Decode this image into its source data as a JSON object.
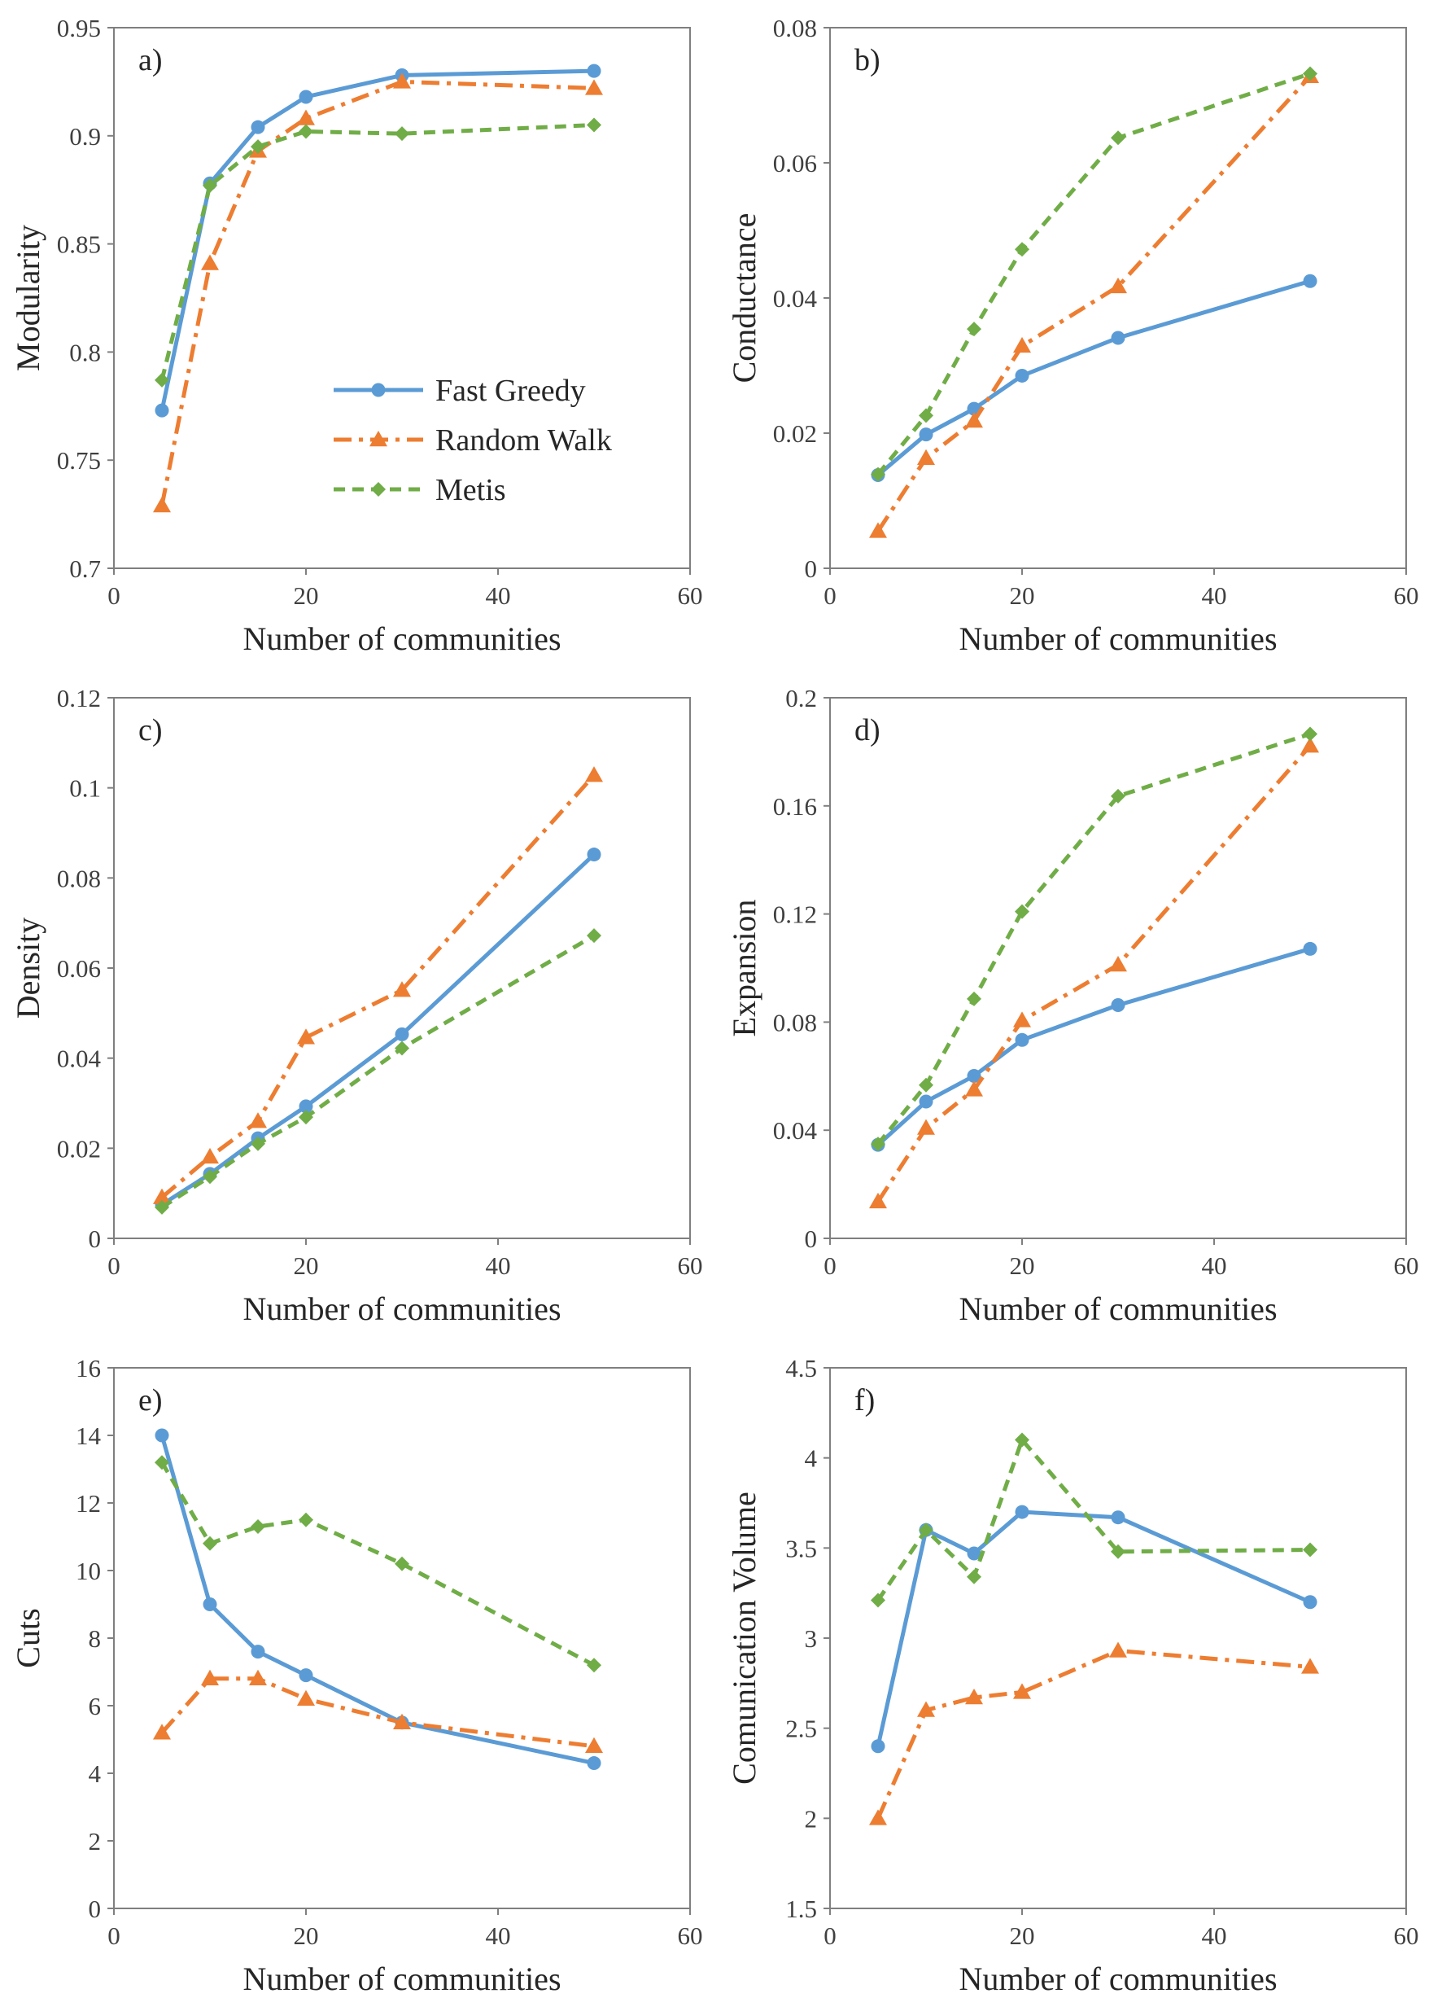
{
  "series_styles": [
    {
      "name": "Fast Greedy",
      "color": "#5b9bd5",
      "dash": "",
      "marker": "circle"
    },
    {
      "name": "Random Walk",
      "color": "#ed7d31",
      "dash": "22,9,5,9",
      "marker": "triangle"
    },
    {
      "name": "Metis",
      "color": "#70ad47",
      "dash": "14,9",
      "marker": "diamond"
    }
  ],
  "chart_data": [
    {
      "type": "line",
      "label": "a)",
      "title": "",
      "xlabel": "Number of communities",
      "ylabel": "Modularity",
      "xlim": [
        0,
        60
      ],
      "ylim": [
        0.7,
        0.95
      ],
      "xticks": [
        "0",
        "20",
        "40",
        "60"
      ],
      "yticks": [
        "0.7",
        "0.75",
        "0.8",
        "0.85",
        "0.9",
        "0.95"
      ],
      "legend": "center-right",
      "grid": false,
      "x": [
        5,
        10,
        15,
        20,
        30,
        50
      ],
      "series": [
        {
          "name": "Fast Greedy",
          "values": [
            0.773,
            0.878,
            0.904,
            0.918,
            0.928,
            0.93
          ]
        },
        {
          "name": "Random Walk",
          "values": [
            0.729,
            0.841,
            0.893,
            0.908,
            0.925,
            0.922
          ]
        },
        {
          "name": "Metis",
          "values": [
            0.787,
            0.877,
            0.895,
            0.902,
            0.901,
            0.905
          ]
        }
      ]
    },
    {
      "type": "line",
      "label": "b)",
      "title": "",
      "xlabel": "Number of communities",
      "ylabel": "Conductance",
      "xlim": [
        0,
        60
      ],
      "ylim": [
        0,
        0.08
      ],
      "xticks": [
        "0",
        "20",
        "40",
        "60"
      ],
      "yticks": [
        "0",
        "0.02",
        "0.04",
        "0.06",
        "0.08"
      ],
      "legend": "",
      "grid": false,
      "x": [
        5,
        10,
        15,
        20,
        30,
        50
      ],
      "series": [
        {
          "name": "Fast Greedy",
          "values": [
            0.0138,
            0.0198,
            0.0236,
            0.0285,
            0.0341,
            0.0425
          ]
        },
        {
          "name": "Random Walk",
          "values": [
            0.0055,
            0.0163,
            0.0218,
            0.0329,
            0.0417,
            0.0728
          ]
        },
        {
          "name": "Metis",
          "values": [
            0.0139,
            0.0226,
            0.0354,
            0.0472,
            0.0637,
            0.0732
          ]
        }
      ]
    },
    {
      "type": "line",
      "label": "c)",
      "title": "",
      "xlabel": "Number of communities",
      "ylabel": "Density",
      "xlim": [
        0,
        60
      ],
      "ylim": [
        0,
        0.12
      ],
      "xticks": [
        "0",
        "20",
        "40",
        "60"
      ],
      "yticks": [
        "0",
        "0.02",
        "0.04",
        "0.06",
        "0.08",
        "0.1",
        "0.12"
      ],
      "legend": "",
      "grid": false,
      "x": [
        5,
        10,
        15,
        20,
        30,
        50
      ],
      "series": [
        {
          "name": "Fast Greedy",
          "values": [
            0.0075,
            0.0143,
            0.0222,
            0.0293,
            0.0453,
            0.0852
          ]
        },
        {
          "name": "Random Walk",
          "values": [
            0.0091,
            0.0181,
            0.026,
            0.0446,
            0.0551,
            0.1028
          ]
        },
        {
          "name": "Metis",
          "values": [
            0.0069,
            0.0137,
            0.021,
            0.0269,
            0.0422,
            0.0672
          ]
        }
      ]
    },
    {
      "type": "line",
      "label": "d)",
      "title": "",
      "xlabel": "Number of communities",
      "ylabel": "Expansion",
      "xlim": [
        0,
        60
      ],
      "ylim": [
        0,
        0.2
      ],
      "xticks": [
        "0",
        "20",
        "40",
        "60"
      ],
      "yticks": [
        "0",
        "0.04",
        "0.08",
        "0.12",
        "0.16",
        "0.2"
      ],
      "legend": "",
      "grid": false,
      "x": [
        5,
        10,
        15,
        20,
        30,
        50
      ],
      "series": [
        {
          "name": "Fast Greedy",
          "values": [
            0.0346,
            0.0506,
            0.0601,
            0.0734,
            0.0863,
            0.1071
          ]
        },
        {
          "name": "Random Walk",
          "values": [
            0.0136,
            0.0408,
            0.055,
            0.0806,
            0.1012,
            0.1822
          ]
        },
        {
          "name": "Metis",
          "values": [
            0.0349,
            0.0567,
            0.0886,
            0.1209,
            0.1636,
            0.1866
          ]
        }
      ]
    },
    {
      "type": "line",
      "label": "e)",
      "title": "",
      "xlabel": "Number of communities",
      "ylabel": "Cuts",
      "xlim": [
        0,
        60
      ],
      "ylim": [
        0,
        16
      ],
      "xticks": [
        "0",
        "20",
        "40",
        "60"
      ],
      "yticks": [
        "0",
        "2",
        "4",
        "6",
        "8",
        "10",
        "12",
        "14",
        "16"
      ],
      "legend": "",
      "grid": false,
      "x": [
        5,
        10,
        15,
        20,
        30,
        50
      ],
      "series": [
        {
          "name": "Fast Greedy",
          "values": [
            14.0,
            9.0,
            7.6,
            6.9,
            5.5,
            4.3
          ]
        },
        {
          "name": "Random Walk",
          "values": [
            5.2,
            6.8,
            6.8,
            6.2,
            5.5,
            4.8
          ]
        },
        {
          "name": "Metis",
          "values": [
            13.2,
            10.8,
            11.3,
            11.5,
            10.2,
            7.2
          ]
        }
      ]
    },
    {
      "type": "line",
      "label": "f)",
      "title": "",
      "xlabel": "Number of communities",
      "ylabel": "Comunication  Volume",
      "xlim": [
        0,
        60
      ],
      "ylim": [
        1.5,
        4.5
      ],
      "xticks": [
        "0",
        "20",
        "40",
        "60"
      ],
      "yticks": [
        "1.5",
        "2",
        "2.5",
        "3",
        "3.5",
        "4",
        "4.5"
      ],
      "legend": "",
      "grid": false,
      "x": [
        5,
        10,
        15,
        20,
        30,
        50
      ],
      "series": [
        {
          "name": "Fast Greedy",
          "values": [
            2.4,
            3.6,
            3.47,
            3.7,
            3.67,
            3.2
          ]
        },
        {
          "name": "Random Walk",
          "values": [
            2.0,
            2.6,
            2.67,
            2.7,
            2.93,
            2.84
          ]
        },
        {
          "name": "Metis",
          "values": [
            3.21,
            3.6,
            3.34,
            4.1,
            3.48,
            3.49
          ]
        }
      ]
    }
  ]
}
